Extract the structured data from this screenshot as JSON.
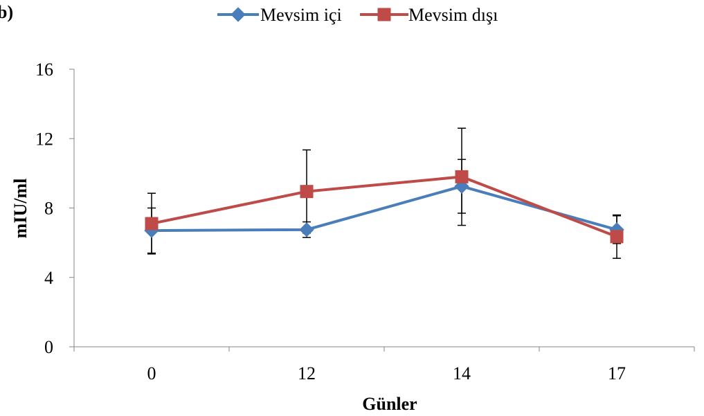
{
  "panel_label": "b)",
  "chart_data": {
    "type": "line",
    "categories": [
      "0",
      "12",
      "14",
      "17"
    ],
    "xlabel": "Günler",
    "ylabel": "mIU/ml",
    "ylim": [
      0,
      16
    ],
    "yticks": [
      0,
      4,
      8,
      12,
      16
    ],
    "grid": false,
    "legend_position": "top",
    "error_bars": true,
    "series": [
      {
        "name": "Mevsim içi",
        "color": "#4a7ebb",
        "marker": "diamond",
        "values": [
          6.7,
          6.75,
          9.25,
          6.75
        ],
        "error": [
          1.3,
          0.45,
          1.55,
          0.8
        ]
      },
      {
        "name": "Mevsim dışı",
        "color": "#be4b48",
        "marker": "square",
        "values": [
          7.1,
          8.95,
          9.8,
          6.35
        ],
        "error": [
          1.75,
          2.4,
          2.8,
          1.25
        ]
      }
    ]
  }
}
